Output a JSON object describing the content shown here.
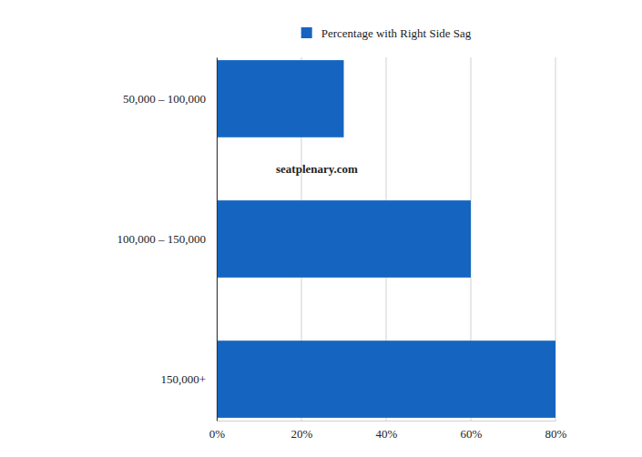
{
  "chart_data": {
    "type": "bar",
    "orientation": "horizontal",
    "categories": [
      "50,000 – 100,000",
      "100,000 – 150,000",
      "150,000+"
    ],
    "series": [
      {
        "name": "Percentage with Right Side Sag",
        "color": "#1565c0",
        "values": [
          30,
          60,
          80
        ]
      }
    ],
    "xlim": [
      0,
      80
    ],
    "xticks": [
      {
        "value": 0,
        "label": "0%"
      },
      {
        "value": 20,
        "label": "20%"
      },
      {
        "value": 40,
        "label": "40%"
      },
      {
        "value": 60,
        "label": "60%"
      },
      {
        "value": 80,
        "label": "80%"
      }
    ],
    "grid": true,
    "legend": "top",
    "annotations": [
      "seatplenary.com"
    ]
  }
}
